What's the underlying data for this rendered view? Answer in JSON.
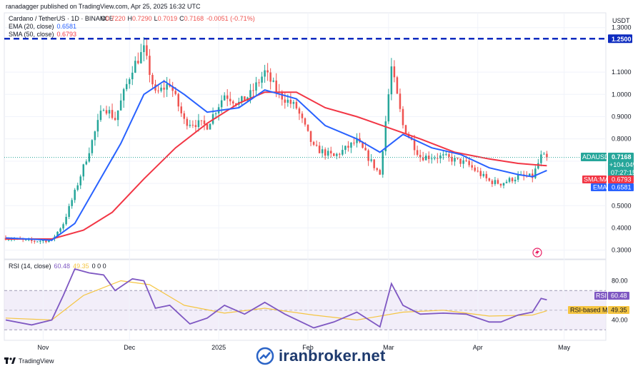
{
  "header": {
    "publisher": "ranadagger published on TradingView.com, Apr 25, 2025 16:32 UTC",
    "symbol_line": "Cardano / TetherUS · 1D · BINANCE",
    "o_label": "O",
    "o": "0.7220",
    "h_label": "H",
    "h": "0.7290",
    "l_label": "L",
    "l": "0.7019",
    "c_label": "C",
    "c": "0.7168",
    "change": "-0.0051 (-0.71%)",
    "ema_label": "EMA (20, close)",
    "ema_value": "0.6581",
    "sma_label": "SMA (50, close)",
    "sma_value": "0.6793",
    "rsi_label": "RSI (14, close)",
    "rsi_value": "60.48",
    "rsi_extra": "49.35",
    "rsi_zeros": "0 0 0"
  },
  "price_axis": {
    "currency": "USDT",
    "ticks": [
      "1.3000",
      "1.2500",
      "1.1000",
      "1.0000",
      "0.9000",
      "0.8000",
      "0.7000",
      "0.6000",
      "0.5000",
      "0.4000",
      "0.3000"
    ]
  },
  "rsi_axis": {
    "ticks": [
      "80.00",
      "40.00"
    ]
  },
  "x_axis": {
    "ticks": [
      "Nov",
      "Dec",
      "2025",
      "Feb",
      "Mar",
      "Apr",
      "May"
    ]
  },
  "badges": {
    "price_level": "1.2500",
    "symbol": "ADAUSDT",
    "price": "0.7168",
    "pct": "+104.04%",
    "timer": "07:27:15",
    "sma_name": "SMA:MA",
    "sma_value": "0.6793",
    "ema_name": "EMA",
    "ema_value": "0.6581",
    "rsi_name": "RSI",
    "rsi_value": "60.48",
    "rsi_ma_name": "RSI-based MA",
    "rsi_ma_value": "49.35"
  },
  "footer": {
    "tradingview": "TradingView",
    "watermark": "iranbroker.net"
  },
  "colors": {
    "up": "#26a69a",
    "down": "#ef5350",
    "ema": "#2962ff",
    "sma": "#f23645",
    "rsi": "#7e57c2",
    "rsi_ma": "#f5c542",
    "level": "#0d2bbf",
    "rsi_band": "#ede7f6"
  },
  "chart_data": {
    "type": "candlestick",
    "title": "Cardano / TetherUS · 1D · BINANCE",
    "ylabel": "USDT",
    "y_range": [
      0.27,
      1.36
    ],
    "horizontal_level": 1.25,
    "x_start": "2024-10-19",
    "x_end": "2025-05-15",
    "anchors": [
      {
        "date": "2024-10-19",
        "close": 0.355
      },
      {
        "date": "2024-10-28",
        "close": 0.34
      },
      {
        "date": "2024-11-04",
        "close": 0.345
      },
      {
        "date": "2024-11-08",
        "close": 0.42
      },
      {
        "date": "2024-11-12",
        "close": 0.56
      },
      {
        "date": "2024-11-17",
        "close": 0.75
      },
      {
        "date": "2024-11-22",
        "close": 0.95
      },
      {
        "date": "2024-11-26",
        "close": 0.89
      },
      {
        "date": "2024-12-02",
        "close": 1.12
      },
      {
        "date": "2024-12-06",
        "close": 1.2
      },
      {
        "date": "2024-12-10",
        "close": 1.0
      },
      {
        "date": "2024-12-15",
        "close": 1.05
      },
      {
        "date": "2024-12-20",
        "close": 0.88
      },
      {
        "date": "2024-12-28",
        "close": 0.86
      },
      {
        "date": "2025-01-03",
        "close": 1.0
      },
      {
        "date": "2025-01-08",
        "close": 0.96
      },
      {
        "date": "2025-01-12",
        "close": 1.0
      },
      {
        "date": "2025-01-17",
        "close": 1.1
      },
      {
        "date": "2025-01-22",
        "close": 1.0
      },
      {
        "date": "2025-01-28",
        "close": 0.94
      },
      {
        "date": "2025-02-03",
        "close": 0.76
      },
      {
        "date": "2025-02-10",
        "close": 0.72
      },
      {
        "date": "2025-02-18",
        "close": 0.79
      },
      {
        "date": "2025-02-26",
        "close": 0.64
      },
      {
        "date": "2025-03-02",
        "close": 1.12
      },
      {
        "date": "2025-03-06",
        "close": 0.86
      },
      {
        "date": "2025-03-12",
        "close": 0.72
      },
      {
        "date": "2025-03-20",
        "close": 0.72
      },
      {
        "date": "2025-03-28",
        "close": 0.69
      },
      {
        "date": "2025-04-05",
        "close": 0.61
      },
      {
        "date": "2025-04-09",
        "close": 0.6
      },
      {
        "date": "2025-04-15",
        "close": 0.63
      },
      {
        "date": "2025-04-20",
        "close": 0.63
      },
      {
        "date": "2025-04-23",
        "close": 0.72
      },
      {
        "date": "2025-04-25",
        "close": 0.7168
      }
    ],
    "ema_20": [
      {
        "date": "2024-10-19",
        "value": 0.355
      },
      {
        "date": "2024-11-04",
        "value": 0.345
      },
      {
        "date": "2024-11-12",
        "value": 0.42
      },
      {
        "date": "2024-11-20",
        "value": 0.6
      },
      {
        "date": "2024-11-28",
        "value": 0.78
      },
      {
        "date": "2024-12-06",
        "value": 1.0
      },
      {
        "date": "2024-12-13",
        "value": 1.06
      },
      {
        "date": "2024-12-20",
        "value": 1.0
      },
      {
        "date": "2024-12-28",
        "value": 0.92
      },
      {
        "date": "2025-01-08",
        "value": 0.94
      },
      {
        "date": "2025-01-17",
        "value": 1.02
      },
      {
        "date": "2025-01-28",
        "value": 0.98
      },
      {
        "date": "2025-02-07",
        "value": 0.86
      },
      {
        "date": "2025-02-18",
        "value": 0.8
      },
      {
        "date": "2025-02-26",
        "value": 0.74
      },
      {
        "date": "2025-03-06",
        "value": 0.82
      },
      {
        "date": "2025-03-16",
        "value": 0.76
      },
      {
        "date": "2025-03-26",
        "value": 0.73
      },
      {
        "date": "2025-04-05",
        "value": 0.67
      },
      {
        "date": "2025-04-15",
        "value": 0.64
      },
      {
        "date": "2025-04-20",
        "value": 0.63
      },
      {
        "date": "2025-04-25",
        "value": 0.6581
      }
    ],
    "sma_50": [
      {
        "date": "2024-10-19",
        "value": 0.35
      },
      {
        "date": "2024-11-04",
        "value": 0.35
      },
      {
        "date": "2024-11-15",
        "value": 0.39
      },
      {
        "date": "2024-11-25",
        "value": 0.47
      },
      {
        "date": "2024-12-06",
        "value": 0.62
      },
      {
        "date": "2024-12-17",
        "value": 0.76
      },
      {
        "date": "2024-12-28",
        "value": 0.87
      },
      {
        "date": "2025-01-08",
        "value": 0.96
      },
      {
        "date": "2025-01-17",
        "value": 1.01
      },
      {
        "date": "2025-01-28",
        "value": 1.01
      },
      {
        "date": "2025-02-07",
        "value": 0.94
      },
      {
        "date": "2025-02-18",
        "value": 0.9
      },
      {
        "date": "2025-03-01",
        "value": 0.85
      },
      {
        "date": "2025-03-12",
        "value": 0.8
      },
      {
        "date": "2025-03-24",
        "value": 0.74
      },
      {
        "date": "2025-04-05",
        "value": 0.71
      },
      {
        "date": "2025-04-15",
        "value": 0.69
      },
      {
        "date": "2025-04-25",
        "value": 0.6793
      }
    ],
    "rsi_14": [
      {
        "date": "2024-10-19",
        "value": 40
      },
      {
        "date": "2024-10-28",
        "value": 35
      },
      {
        "date": "2024-11-04",
        "value": 40
      },
      {
        "date": "2024-11-08",
        "value": 65
      },
      {
        "date": "2024-11-12",
        "value": 92
      },
      {
        "date": "2024-11-17",
        "value": 88
      },
      {
        "date": "2024-11-22",
        "value": 86
      },
      {
        "date": "2024-11-26",
        "value": 70
      },
      {
        "date": "2024-12-02",
        "value": 82
      },
      {
        "date": "2024-12-06",
        "value": 80
      },
      {
        "date": "2024-12-10",
        "value": 52
      },
      {
        "date": "2024-12-15",
        "value": 55
      },
      {
        "date": "2024-12-22",
        "value": 36
      },
      {
        "date": "2024-12-28",
        "value": 42
      },
      {
        "date": "2025-01-03",
        "value": 55
      },
      {
        "date": "2025-01-10",
        "value": 46
      },
      {
        "date": "2025-01-17",
        "value": 58
      },
      {
        "date": "2025-01-24",
        "value": 46
      },
      {
        "date": "2025-02-03",
        "value": 32
      },
      {
        "date": "2025-02-10",
        "value": 38
      },
      {
        "date": "2025-02-18",
        "value": 48
      },
      {
        "date": "2025-02-26",
        "value": 33
      },
      {
        "date": "2025-03-02",
        "value": 77
      },
      {
        "date": "2025-03-06",
        "value": 55
      },
      {
        "date": "2025-03-12",
        "value": 46
      },
      {
        "date": "2025-03-20",
        "value": 47
      },
      {
        "date": "2025-03-28",
        "value": 46
      },
      {
        "date": "2025-04-05",
        "value": 38
      },
      {
        "date": "2025-04-09",
        "value": 38
      },
      {
        "date": "2025-04-15",
        "value": 45
      },
      {
        "date": "2025-04-20",
        "value": 48
      },
      {
        "date": "2025-04-23",
        "value": 62
      },
      {
        "date": "2025-04-25",
        "value": 60.48
      }
    ],
    "rsi_ma": [
      {
        "date": "2024-10-19",
        "value": 42
      },
      {
        "date": "2024-11-04",
        "value": 40
      },
      {
        "date": "2024-11-15",
        "value": 65
      },
      {
        "date": "2024-11-28",
        "value": 80
      },
      {
        "date": "2024-12-08",
        "value": 76
      },
      {
        "date": "2024-12-20",
        "value": 55
      },
      {
        "date": "2025-01-03",
        "value": 47
      },
      {
        "date": "2025-01-17",
        "value": 52
      },
      {
        "date": "2025-02-03",
        "value": 45
      },
      {
        "date": "2025-02-18",
        "value": 40
      },
      {
        "date": "2025-03-06",
        "value": 48
      },
      {
        "date": "2025-03-20",
        "value": 50
      },
      {
        "date": "2025-04-05",
        "value": 44
      },
      {
        "date": "2025-04-20",
        "value": 45
      },
      {
        "date": "2025-04-25",
        "value": 49.35
      }
    ],
    "rsi_range": [
      20,
      100
    ],
    "rsi_bands": [
      30,
      70
    ]
  }
}
